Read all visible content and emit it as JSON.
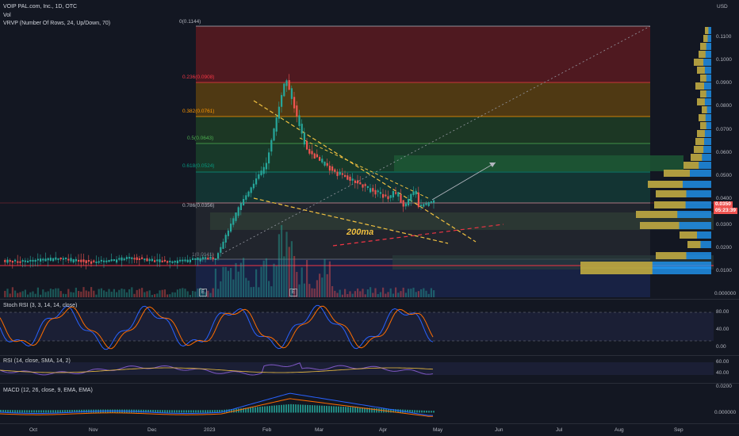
{
  "header": {
    "title": "VOIP PAL.com, Inc., 1D, OTC",
    "vol": "Vol",
    "vrvp": "VRVP (Number Of Rows, 24, Up/Down, 70)",
    "currency": "USD"
  },
  "price_scale": [
    "0.1100",
    "0.1000",
    "0.0900",
    "0.0800",
    "0.0700",
    "0.0600",
    "0.0500",
    "0.0400",
    "0.0300",
    "0.0200",
    "0.0100",
    "0.000000"
  ],
  "price_badges": {
    "last": "0.0350",
    "countdown": "05:23:39"
  },
  "fib_levels": [
    {
      "label": "0(0.1144)",
      "color": "#b2b5be"
    },
    {
      "label": "0.236(0.0908)",
      "color": "#f23645"
    },
    {
      "label": "0.382(0.0761)",
      "color": "#ff9800"
    },
    {
      "label": "0.5(0.0643)",
      "color": "#4caf50"
    },
    {
      "label": "0.618(0.0524)",
      "color": "#089981"
    },
    {
      "label": "0.786(0.0356)",
      "color": "#b2b5be"
    },
    {
      "label": "1(0.0141)",
      "color": "#787b86"
    }
  ],
  "annotation": "200ma",
  "earnings_markers": [
    "E",
    "E"
  ],
  "time_axis": [
    "Oct",
    "Nov",
    "Dec",
    "2023",
    "Feb",
    "Mar",
    "Apr",
    "May",
    "Jun",
    "Jul",
    "Aug",
    "Sep"
  ],
  "stoch": {
    "label": "Stoch RSI (3, 3, 14, 14, close)",
    "scale": [
      "80.00",
      "40.00",
      "0.00"
    ]
  },
  "rsi": {
    "label": "RSI (14, close, SMA, 14, 2)",
    "scale": [
      "60.00",
      "40.00"
    ]
  },
  "macd": {
    "label": "MACD (12, 26, close, 9, EMA, EMA)",
    "scale": [
      "0.0200",
      "0.000000"
    ]
  },
  "colors": {
    "up": "#26a69a",
    "down": "#ef5350",
    "bg": "#131722",
    "macd": "#2962ff",
    "signal": "#ff6d00"
  }
}
